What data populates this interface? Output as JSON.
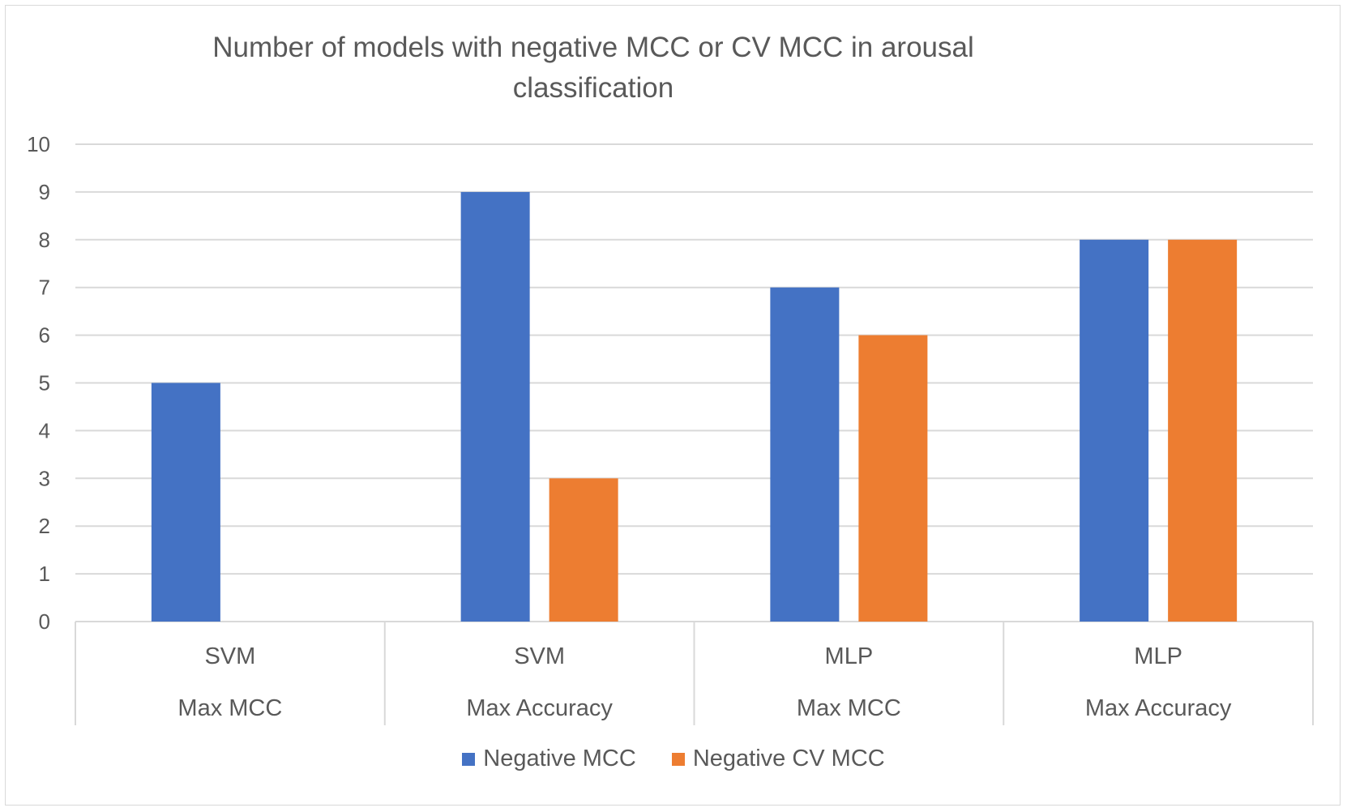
{
  "chart_data": {
    "type": "bar",
    "title_lines": [
      "Number of models with negative MCC or CV MCC in arousal",
      "classification"
    ],
    "categories": [
      {
        "model": "SVM",
        "criterion": "Max MCC"
      },
      {
        "model": "SVM",
        "criterion": "Max Accuracy"
      },
      {
        "model": "MLP",
        "criterion": "Max MCC"
      },
      {
        "model": "MLP",
        "criterion": "Max Accuracy"
      }
    ],
    "series": [
      {
        "name": "Negative MCC",
        "color": "#4472c4",
        "values": [
          5,
          9,
          7,
          8
        ]
      },
      {
        "name": "Negative CV MCC",
        "color": "#ed7d31",
        "values": [
          0,
          3,
          6,
          8
        ]
      }
    ],
    "yticks": [
      "0",
      "1",
      "2",
      "3",
      "4",
      "5",
      "6",
      "7",
      "8",
      "9",
      "10"
    ],
    "ylim": [
      0,
      10
    ],
    "grid": true,
    "legend_position": "bottom"
  }
}
